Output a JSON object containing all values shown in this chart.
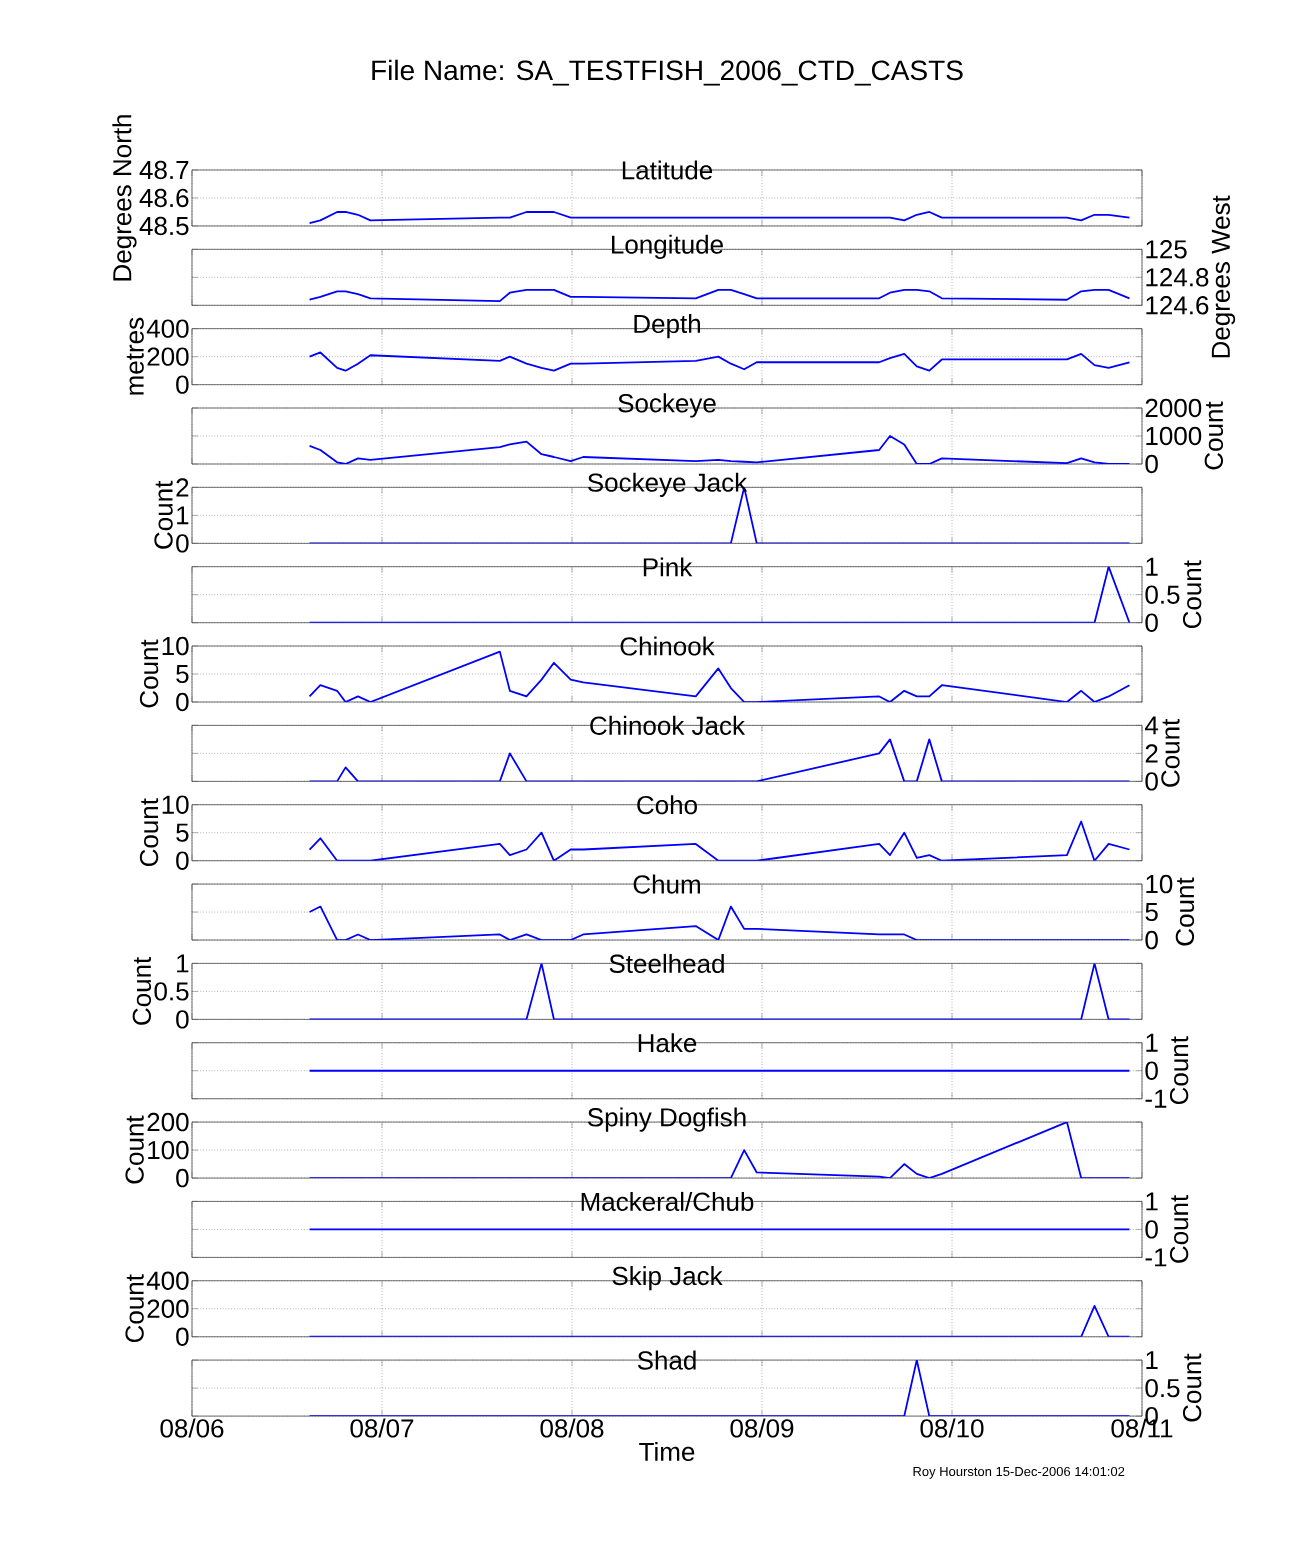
{
  "chart_data": [
    {
      "type": "line",
      "title": "Latitude",
      "ylabel": "Degrees North",
      "annotations": [
        "File Name: SA_TESTFISH_2006_CTD_CASTS"
      ],
      "x": [
        "2006-08-06T14:51",
        "2006-08-06T16:13",
        "2006-08-06T18:20",
        "2006-08-06T19:24",
        "2006-08-06T20:58",
        "2006-08-06T22:32",
        "2006-08-07T14:53",
        "2006-08-07T16:09",
        "2006-08-07T18:15",
        "2006-08-07T20:09",
        "2006-08-07T21:43",
        "2006-08-07T23:50",
        "2006-08-08T01:25",
        "2006-08-08T15:38",
        "2006-08-08T18:29",
        "2006-08-08T20:04",
        "2006-08-08T21:45",
        "2006-08-08T23:20",
        "2006-08-09T14:48",
        "2006-08-09T16:10",
        "2006-08-09T17:58",
        "2006-08-09T19:33",
        "2006-08-09T21:08",
        "2006-08-09T22:43",
        "2006-08-10T14:31",
        "2006-08-10T16:19",
        "2006-08-10T18:00",
        "2006-08-10T19:47",
        "2006-08-10T22:25"
      ],
      "xlim": [
        "2006-08-06",
        "2006-08-11"
      ],
      "xticks": [
        {
          "value": "2006-08-06",
          "label": null
        },
        {
          "value": "2006-08-07",
          "label": null
        },
        {
          "value": "2006-08-08",
          "label": null
        },
        {
          "value": "2006-08-09",
          "label": null
        },
        {
          "value": "2006-08-10",
          "label": null
        },
        {
          "value": "2006-08-11",
          "label": null
        }
      ],
      "ylim": [
        48.5,
        48.7
      ],
      "yticks": [
        48.5,
        48.6,
        48.7
      ],
      "grid": true,
      "tick_labels": "y",
      "series": [
        {
          "color": "#0000ff",
          "values": [
            48.51,
            48.52,
            48.55,
            48.55,
            48.54,
            48.52,
            48.53,
            48.53,
            48.55,
            48.55,
            48.55,
            48.53,
            48.53,
            48.53,
            48.53,
            48.53,
            48.53,
            48.53,
            48.53,
            48.53,
            48.52,
            48.54,
            48.55,
            48.53,
            48.53,
            48.52,
            48.54,
            48.54,
            48.53
          ]
        }
      ]
    },
    {
      "type": "line",
      "title": "Longitude",
      "ylabel": "Degrees West",
      "x": [
        "2006-08-06T14:51",
        "2006-08-06T16:13",
        "2006-08-06T18:20",
        "2006-08-06T19:24",
        "2006-08-06T20:58",
        "2006-08-06T22:32",
        "2006-08-07T14:53",
        "2006-08-07T16:09",
        "2006-08-07T18:15",
        "2006-08-07T20:09",
        "2006-08-07T21:43",
        "2006-08-07T23:50",
        "2006-08-08T01:25",
        "2006-08-08T15:38",
        "2006-08-08T18:29",
        "2006-08-08T20:04",
        "2006-08-08T21:45",
        "2006-08-08T23:20",
        "2006-08-09T14:48",
        "2006-08-09T16:10",
        "2006-08-09T17:58",
        "2006-08-09T19:33",
        "2006-08-09T21:08",
        "2006-08-09T22:43",
        "2006-08-10T14:31",
        "2006-08-10T16:19",
        "2006-08-10T18:00",
        "2006-08-10T19:47",
        "2006-08-10T22:25"
      ],
      "xlim": [
        "2006-08-06",
        "2006-08-11"
      ],
      "xticks": [
        {
          "value": "2006-08-06",
          "label": null
        },
        {
          "value": "2006-08-07",
          "label": null
        },
        {
          "value": "2006-08-08",
          "label": null
        },
        {
          "value": "2006-08-09",
          "label": null
        },
        {
          "value": "2006-08-10",
          "label": null
        },
        {
          "value": "2006-08-11",
          "label": null
        }
      ],
      "ylim": [
        124.6,
        125
      ],
      "yticks": [
        124.6,
        124.8,
        125
      ],
      "grid": true,
      "tick_labels": "y",
      "series": [
        {
          "color": "#0000ff",
          "values": [
            124.64,
            124.66,
            124.7,
            124.7,
            124.68,
            124.65,
            124.63,
            124.69,
            124.71,
            124.71,
            124.71,
            124.66,
            124.66,
            124.65,
            124.71,
            124.71,
            124.68,
            124.65,
            124.65,
            124.69,
            124.71,
            124.71,
            124.7,
            124.65,
            124.64,
            124.7,
            124.71,
            124.71,
            124.65
          ]
        }
      ]
    },
    {
      "type": "line",
      "title": "Depth",
      "ylabel": "metres",
      "x": [
        "2006-08-06T14:51",
        "2006-08-06T16:13",
        "2006-08-06T18:20",
        "2006-08-06T19:24",
        "2006-08-06T20:58",
        "2006-08-06T22:32",
        "2006-08-07T14:53",
        "2006-08-07T16:09",
        "2006-08-07T18:15",
        "2006-08-07T20:09",
        "2006-08-07T21:43",
        "2006-08-07T23:50",
        "2006-08-08T01:25",
        "2006-08-08T15:38",
        "2006-08-08T18:29",
        "2006-08-08T20:04",
        "2006-08-08T21:45",
        "2006-08-08T23:20",
        "2006-08-09T14:48",
        "2006-08-09T16:10",
        "2006-08-09T17:58",
        "2006-08-09T19:33",
        "2006-08-09T21:08",
        "2006-08-09T22:43",
        "2006-08-10T14:31",
        "2006-08-10T16:19",
        "2006-08-10T18:00",
        "2006-08-10T19:47",
        "2006-08-10T22:25"
      ],
      "xlim": [
        "2006-08-06",
        "2006-08-11"
      ],
      "xticks": [
        {
          "value": "2006-08-06",
          "label": null
        },
        {
          "value": "2006-08-07",
          "label": null
        },
        {
          "value": "2006-08-08",
          "label": null
        },
        {
          "value": "2006-08-09",
          "label": null
        },
        {
          "value": "2006-08-10",
          "label": null
        },
        {
          "value": "2006-08-11",
          "label": null
        }
      ],
      "ylim": [
        0,
        400
      ],
      "yticks": [
        0,
        200,
        400
      ],
      "grid": true,
      "tick_labels": "y",
      "series": [
        {
          "color": "#0000ff",
          "values": [
            200,
            230,
            120,
            100,
            150,
            210,
            170,
            200,
            150,
            120,
            100,
            150,
            150,
            170,
            200,
            150,
            110,
            160,
            160,
            190,
            220,
            130,
            100,
            180,
            180,
            220,
            140,
            120,
            160
          ]
        }
      ]
    },
    {
      "type": "line",
      "title": "Sockeye",
      "ylabel": "Count",
      "x": [
        "2006-08-06T14:51",
        "2006-08-06T16:13",
        "2006-08-06T18:20",
        "2006-08-06T19:24",
        "2006-08-06T20:58",
        "2006-08-06T22:32",
        "2006-08-07T14:53",
        "2006-08-07T16:09",
        "2006-08-07T18:15",
        "2006-08-07T20:09",
        "2006-08-07T21:43",
        "2006-08-07T23:50",
        "2006-08-08T01:25",
        "2006-08-08T15:38",
        "2006-08-08T18:29",
        "2006-08-08T20:04",
        "2006-08-08T21:45",
        "2006-08-08T23:20",
        "2006-08-09T14:48",
        "2006-08-09T16:10",
        "2006-08-09T17:58",
        "2006-08-09T19:33",
        "2006-08-09T21:08",
        "2006-08-09T22:43",
        "2006-08-10T14:31",
        "2006-08-10T16:19",
        "2006-08-10T18:00",
        "2006-08-10T19:47",
        "2006-08-10T22:25"
      ],
      "xlim": [
        "2006-08-06",
        "2006-08-11"
      ],
      "xticks": [
        {
          "value": "2006-08-06",
          "label": null
        },
        {
          "value": "2006-08-07",
          "label": null
        },
        {
          "value": "2006-08-08",
          "label": null
        },
        {
          "value": "2006-08-09",
          "label": null
        },
        {
          "value": "2006-08-10",
          "label": null
        },
        {
          "value": "2006-08-11",
          "label": null
        }
      ],
      "ylim": [
        0,
        2000
      ],
      "yticks": [
        0,
        1000,
        2000
      ],
      "grid": true,
      "tick_labels": "y",
      "series": [
        {
          "color": "#0000ff",
          "values": [
            650,
            500,
            60,
            0,
            200,
            150,
            600,
            700,
            800,
            350,
            250,
            100,
            250,
            100,
            150,
            100,
            80,
            60,
            500,
            1000,
            700,
            0,
            0,
            200,
            30,
            200,
            60,
            0,
            0
          ]
        }
      ]
    },
    {
      "type": "line",
      "title": "Sockeye Jack",
      "ylabel": "Count",
      "x": [
        "2006-08-06T14:51",
        "2006-08-06T16:13",
        "2006-08-06T18:20",
        "2006-08-06T19:24",
        "2006-08-06T20:58",
        "2006-08-06T22:32",
        "2006-08-07T14:53",
        "2006-08-07T16:09",
        "2006-08-07T18:15",
        "2006-08-07T20:09",
        "2006-08-07T21:43",
        "2006-08-07T23:50",
        "2006-08-08T01:25",
        "2006-08-08T15:38",
        "2006-08-08T18:29",
        "2006-08-08T20:04",
        "2006-08-08T21:45",
        "2006-08-08T23:20",
        "2006-08-09T14:48",
        "2006-08-09T16:10",
        "2006-08-09T17:58",
        "2006-08-09T19:33",
        "2006-08-09T21:08",
        "2006-08-09T22:43",
        "2006-08-10T14:31",
        "2006-08-10T16:19",
        "2006-08-10T18:00",
        "2006-08-10T19:47",
        "2006-08-10T22:25"
      ],
      "xlim": [
        "2006-08-06",
        "2006-08-11"
      ],
      "xticks": [
        {
          "value": "2006-08-06",
          "label": null
        },
        {
          "value": "2006-08-07",
          "label": null
        },
        {
          "value": "2006-08-08",
          "label": null
        },
        {
          "value": "2006-08-09",
          "label": null
        },
        {
          "value": "2006-08-10",
          "label": null
        },
        {
          "value": "2006-08-11",
          "label": null
        }
      ],
      "ylim": [
        0,
        2
      ],
      "yticks": [
        0,
        1,
        2
      ],
      "grid": true,
      "tick_labels": "y",
      "series": [
        {
          "color": "#0000ff",
          "values": [
            0,
            0,
            0,
            0,
            0,
            0,
            0,
            0,
            0,
            0,
            0,
            0,
            0,
            0,
            0,
            0,
            2,
            0,
            0,
            0,
            0,
            0,
            0,
            0,
            0,
            0,
            0,
            0,
            0
          ]
        }
      ]
    },
    {
      "type": "line",
      "title": "Pink",
      "ylabel": "Count",
      "x": [
        "2006-08-06T14:51",
        "2006-08-06T16:13",
        "2006-08-06T18:20",
        "2006-08-06T19:24",
        "2006-08-06T20:58",
        "2006-08-06T22:32",
        "2006-08-07T14:53",
        "2006-08-07T16:09",
        "2006-08-07T18:15",
        "2006-08-07T20:09",
        "2006-08-07T21:43",
        "2006-08-07T23:50",
        "2006-08-08T01:25",
        "2006-08-08T15:38",
        "2006-08-08T18:29",
        "2006-08-08T20:04",
        "2006-08-08T21:45",
        "2006-08-08T23:20",
        "2006-08-09T14:48",
        "2006-08-09T16:10",
        "2006-08-09T17:58",
        "2006-08-09T19:33",
        "2006-08-09T21:08",
        "2006-08-09T22:43",
        "2006-08-10T14:31",
        "2006-08-10T16:19",
        "2006-08-10T18:00",
        "2006-08-10T19:47",
        "2006-08-10T22:25"
      ],
      "xlim": [
        "2006-08-06",
        "2006-08-11"
      ],
      "xticks": [
        {
          "value": "2006-08-06",
          "label": null
        },
        {
          "value": "2006-08-07",
          "label": null
        },
        {
          "value": "2006-08-08",
          "label": null
        },
        {
          "value": "2006-08-09",
          "label": null
        },
        {
          "value": "2006-08-10",
          "label": null
        },
        {
          "value": "2006-08-11",
          "label": null
        }
      ],
      "ylim": [
        0,
        1
      ],
      "yticks": [
        0,
        0.5,
        1
      ],
      "grid": true,
      "tick_labels": "y",
      "series": [
        {
          "color": "#0000ff",
          "values": [
            0,
            0,
            0,
            0,
            0,
            0,
            0,
            0,
            0,
            0,
            0,
            0,
            0,
            0,
            0,
            0,
            0,
            0,
            0,
            0,
            0,
            0,
            0,
            0,
            0,
            0,
            0,
            1,
            0
          ]
        }
      ]
    },
    {
      "type": "line",
      "title": "Chinook",
      "ylabel": "Count",
      "x": [
        "2006-08-06T14:51",
        "2006-08-06T16:13",
        "2006-08-06T18:20",
        "2006-08-06T19:24",
        "2006-08-06T20:58",
        "2006-08-06T22:32",
        "2006-08-07T14:53",
        "2006-08-07T16:09",
        "2006-08-07T18:15",
        "2006-08-07T20:09",
        "2006-08-07T21:43",
        "2006-08-07T23:50",
        "2006-08-08T01:25",
        "2006-08-08T15:38",
        "2006-08-08T18:29",
        "2006-08-08T20:04",
        "2006-08-08T21:45",
        "2006-08-08T23:20",
        "2006-08-09T14:48",
        "2006-08-09T16:10",
        "2006-08-09T17:58",
        "2006-08-09T19:33",
        "2006-08-09T21:08",
        "2006-08-09T22:43",
        "2006-08-10T14:31",
        "2006-08-10T16:19",
        "2006-08-10T18:00",
        "2006-08-10T19:47",
        "2006-08-10T22:25"
      ],
      "xlim": [
        "2006-08-06",
        "2006-08-11"
      ],
      "xticks": [
        {
          "value": "2006-08-06",
          "label": null
        },
        {
          "value": "2006-08-07",
          "label": null
        },
        {
          "value": "2006-08-08",
          "label": null
        },
        {
          "value": "2006-08-09",
          "label": null
        },
        {
          "value": "2006-08-10",
          "label": null
        },
        {
          "value": "2006-08-11",
          "label": null
        }
      ],
      "ylim": [
        0,
        10
      ],
      "yticks": [
        0,
        5,
        10
      ],
      "grid": true,
      "tick_labels": "y",
      "series": [
        {
          "color": "#0000ff",
          "values": [
            1,
            3,
            2,
            0,
            1,
            0,
            9,
            2,
            1,
            4,
            7,
            4,
            3.5,
            1,
            6,
            2.5,
            0,
            0,
            1,
            0,
            2,
            1,
            1,
            3,
            0,
            2,
            0,
            1,
            3
          ]
        }
      ]
    },
    {
      "type": "line",
      "title": "Chinook Jack",
      "ylabel": "Count",
      "x": [
        "2006-08-06T14:51",
        "2006-08-06T16:13",
        "2006-08-06T18:20",
        "2006-08-06T19:24",
        "2006-08-06T20:58",
        "2006-08-06T22:32",
        "2006-08-07T14:53",
        "2006-08-07T16:09",
        "2006-08-07T18:15",
        "2006-08-07T20:09",
        "2006-08-07T21:43",
        "2006-08-07T23:50",
        "2006-08-08T01:25",
        "2006-08-08T15:38",
        "2006-08-08T18:29",
        "2006-08-08T20:04",
        "2006-08-08T21:45",
        "2006-08-08T23:20",
        "2006-08-09T14:48",
        "2006-08-09T16:10",
        "2006-08-09T17:58",
        "2006-08-09T19:33",
        "2006-08-09T21:08",
        "2006-08-09T22:43",
        "2006-08-10T14:31",
        "2006-08-10T16:19",
        "2006-08-10T18:00",
        "2006-08-10T19:47",
        "2006-08-10T22:25"
      ],
      "xlim": [
        "2006-08-06",
        "2006-08-11"
      ],
      "xticks": [
        {
          "value": "2006-08-06",
          "label": null
        },
        {
          "value": "2006-08-07",
          "label": null
        },
        {
          "value": "2006-08-08",
          "label": null
        },
        {
          "value": "2006-08-09",
          "label": null
        },
        {
          "value": "2006-08-10",
          "label": null
        },
        {
          "value": "2006-08-11",
          "label": null
        }
      ],
      "ylim": [
        0,
        4
      ],
      "yticks": [
        0,
        2,
        4
      ],
      "grid": true,
      "tick_labels": "y",
      "series": [
        {
          "color": "#0000ff",
          "values": [
            0,
            0,
            0,
            1,
            0,
            0,
            0,
            2,
            0,
            0,
            0,
            0,
            0,
            0,
            0,
            0,
            0,
            0,
            2,
            3,
            0,
            0,
            3,
            0,
            0,
            0,
            0,
            0,
            0
          ]
        }
      ]
    },
    {
      "type": "line",
      "title": "Coho",
      "ylabel": "Count",
      "x": [
        "2006-08-06T14:51",
        "2006-08-06T16:13",
        "2006-08-06T18:20",
        "2006-08-06T19:24",
        "2006-08-06T20:58",
        "2006-08-06T22:32",
        "2006-08-07T14:53",
        "2006-08-07T16:09",
        "2006-08-07T18:15",
        "2006-08-07T20:09",
        "2006-08-07T21:43",
        "2006-08-07T23:50",
        "2006-08-08T01:25",
        "2006-08-08T15:38",
        "2006-08-08T18:29",
        "2006-08-08T20:04",
        "2006-08-08T21:45",
        "2006-08-08T23:20",
        "2006-08-09T14:48",
        "2006-08-09T16:10",
        "2006-08-09T17:58",
        "2006-08-09T19:33",
        "2006-08-09T21:08",
        "2006-08-09T22:43",
        "2006-08-10T14:31",
        "2006-08-10T16:19",
        "2006-08-10T18:00",
        "2006-08-10T19:47",
        "2006-08-10T22:25"
      ],
      "xlim": [
        "2006-08-06",
        "2006-08-11"
      ],
      "xticks": [
        {
          "value": "2006-08-06",
          "label": null
        },
        {
          "value": "2006-08-07",
          "label": null
        },
        {
          "value": "2006-08-08",
          "label": null
        },
        {
          "value": "2006-08-09",
          "label": null
        },
        {
          "value": "2006-08-10",
          "label": null
        },
        {
          "value": "2006-08-11",
          "label": null
        }
      ],
      "ylim": [
        0,
        10
      ],
      "yticks": [
        0,
        5,
        10
      ],
      "grid": true,
      "tick_labels": "y",
      "series": [
        {
          "color": "#0000ff",
          "values": [
            2,
            4,
            0,
            0,
            0,
            0,
            3,
            1,
            2,
            5,
            0,
            2,
            2,
            3,
            0,
            0,
            0,
            0,
            3,
            1,
            5,
            0.5,
            1,
            0,
            1,
            7,
            0,
            3,
            2
          ]
        }
      ]
    },
    {
      "type": "line",
      "title": "Chum",
      "ylabel": "Count",
      "x": [
        "2006-08-06T14:51",
        "2006-08-06T16:13",
        "2006-08-06T18:20",
        "2006-08-06T19:24",
        "2006-08-06T20:58",
        "2006-08-06T22:32",
        "2006-08-07T14:53",
        "2006-08-07T16:09",
        "2006-08-07T18:15",
        "2006-08-07T20:09",
        "2006-08-07T21:43",
        "2006-08-07T23:50",
        "2006-08-08T01:25",
        "2006-08-08T15:38",
        "2006-08-08T18:29",
        "2006-08-08T20:04",
        "2006-08-08T21:45",
        "2006-08-08T23:20",
        "2006-08-09T14:48",
        "2006-08-09T16:10",
        "2006-08-09T17:58",
        "2006-08-09T19:33",
        "2006-08-09T21:08",
        "2006-08-09T22:43",
        "2006-08-10T14:31",
        "2006-08-10T16:19",
        "2006-08-10T18:00",
        "2006-08-10T19:47",
        "2006-08-10T22:25"
      ],
      "xlim": [
        "2006-08-06",
        "2006-08-11"
      ],
      "xticks": [
        {
          "value": "2006-08-06",
          "label": null
        },
        {
          "value": "2006-08-07",
          "label": null
        },
        {
          "value": "2006-08-08",
          "label": null
        },
        {
          "value": "2006-08-09",
          "label": null
        },
        {
          "value": "2006-08-10",
          "label": null
        },
        {
          "value": "2006-08-11",
          "label": null
        }
      ],
      "ylim": [
        0,
        10
      ],
      "yticks": [
        0,
        5,
        10
      ],
      "grid": true,
      "tick_labels": "y",
      "series": [
        {
          "color": "#0000ff",
          "values": [
            5,
            6,
            0,
            0,
            1,
            0,
            1,
            0,
            1,
            0,
            0,
            0,
            1,
            2.5,
            0,
            6,
            2,
            2,
            1,
            1,
            1,
            0,
            0,
            0,
            0,
            0,
            0,
            0,
            0
          ]
        }
      ]
    },
    {
      "type": "line",
      "title": "Steelhead",
      "ylabel": "Count",
      "x": [
        "2006-08-06T14:51",
        "2006-08-06T16:13",
        "2006-08-06T18:20",
        "2006-08-06T19:24",
        "2006-08-06T20:58",
        "2006-08-06T22:32",
        "2006-08-07T14:53",
        "2006-08-07T16:09",
        "2006-08-07T18:15",
        "2006-08-07T20:09",
        "2006-08-07T21:43",
        "2006-08-07T23:50",
        "2006-08-08T01:25",
        "2006-08-08T15:38",
        "2006-08-08T18:29",
        "2006-08-08T20:04",
        "2006-08-08T21:45",
        "2006-08-08T23:20",
        "2006-08-09T14:48",
        "2006-08-09T16:10",
        "2006-08-09T17:58",
        "2006-08-09T19:33",
        "2006-08-09T21:08",
        "2006-08-09T22:43",
        "2006-08-10T14:31",
        "2006-08-10T16:19",
        "2006-08-10T18:00",
        "2006-08-10T19:47",
        "2006-08-10T22:25"
      ],
      "xlim": [
        "2006-08-06",
        "2006-08-11"
      ],
      "xticks": [
        {
          "value": "2006-08-06",
          "label": null
        },
        {
          "value": "2006-08-07",
          "label": null
        },
        {
          "value": "2006-08-08",
          "label": null
        },
        {
          "value": "2006-08-09",
          "label": null
        },
        {
          "value": "2006-08-10",
          "label": null
        },
        {
          "value": "2006-08-11",
          "label": null
        }
      ],
      "ylim": [
        0,
        1
      ],
      "yticks": [
        0,
        0.5,
        1
      ],
      "grid": true,
      "tick_labels": "y",
      "series": [
        {
          "color": "#0000ff",
          "values": [
            0,
            0,
            0,
            0,
            0,
            0,
            0,
            0,
            0,
            1,
            0,
            0,
            0,
            0,
            0,
            0,
            0,
            0,
            0,
            0,
            0,
            0,
            0,
            0,
            0,
            0,
            1,
            0,
            0
          ]
        }
      ]
    },
    {
      "type": "line",
      "title": "Hake",
      "ylabel": "Count",
      "x": [
        "2006-08-06T14:51",
        "2006-08-06T16:13",
        "2006-08-06T18:20",
        "2006-08-06T19:24",
        "2006-08-06T20:58",
        "2006-08-06T22:32",
        "2006-08-07T14:53",
        "2006-08-07T16:09",
        "2006-08-07T18:15",
        "2006-08-07T20:09",
        "2006-08-07T21:43",
        "2006-08-07T23:50",
        "2006-08-08T01:25",
        "2006-08-08T15:38",
        "2006-08-08T18:29",
        "2006-08-08T20:04",
        "2006-08-08T21:45",
        "2006-08-08T23:20",
        "2006-08-09T14:48",
        "2006-08-09T16:10",
        "2006-08-09T17:58",
        "2006-08-09T19:33",
        "2006-08-09T21:08",
        "2006-08-09T22:43",
        "2006-08-10T14:31",
        "2006-08-10T16:19",
        "2006-08-10T18:00",
        "2006-08-10T19:47",
        "2006-08-10T22:25"
      ],
      "xlim": [
        "2006-08-06",
        "2006-08-11"
      ],
      "xticks": [
        {
          "value": "2006-08-06",
          "label": null
        },
        {
          "value": "2006-08-07",
          "label": null
        },
        {
          "value": "2006-08-08",
          "label": null
        },
        {
          "value": "2006-08-09",
          "label": null
        },
        {
          "value": "2006-08-10",
          "label": null
        },
        {
          "value": "2006-08-11",
          "label": null
        }
      ],
      "ylim": [
        -1,
        1
      ],
      "yticks": [
        -1,
        0,
        1
      ],
      "grid": true,
      "tick_labels": "y",
      "series": [
        {
          "color": "#0000ff",
          "values": [
            0,
            0,
            0,
            0,
            0,
            0,
            0,
            0,
            0,
            0,
            0,
            0,
            0,
            0,
            0,
            0,
            0,
            0,
            0,
            0,
            0,
            0,
            0,
            0,
            0,
            0,
            0,
            0,
            0
          ]
        }
      ]
    },
    {
      "type": "line",
      "title": "Spiny Dogfish",
      "ylabel": "Count",
      "x": [
        "2006-08-06T14:51",
        "2006-08-06T16:13",
        "2006-08-06T18:20",
        "2006-08-06T19:24",
        "2006-08-06T20:58",
        "2006-08-06T22:32",
        "2006-08-07T14:53",
        "2006-08-07T16:09",
        "2006-08-07T18:15",
        "2006-08-07T20:09",
        "2006-08-07T21:43",
        "2006-08-07T23:50",
        "2006-08-08T01:25",
        "2006-08-08T15:38",
        "2006-08-08T18:29",
        "2006-08-08T20:04",
        "2006-08-08T21:45",
        "2006-08-08T23:20",
        "2006-08-09T14:48",
        "2006-08-09T16:10",
        "2006-08-09T17:58",
        "2006-08-09T19:33",
        "2006-08-09T21:08",
        "2006-08-09T22:43",
        "2006-08-10T14:31",
        "2006-08-10T16:19",
        "2006-08-10T18:00",
        "2006-08-10T19:47",
        "2006-08-10T22:25"
      ],
      "xlim": [
        "2006-08-06",
        "2006-08-11"
      ],
      "xticks": [
        {
          "value": "2006-08-06",
          "label": null
        },
        {
          "value": "2006-08-07",
          "label": null
        },
        {
          "value": "2006-08-08",
          "label": null
        },
        {
          "value": "2006-08-09",
          "label": null
        },
        {
          "value": "2006-08-10",
          "label": null
        },
        {
          "value": "2006-08-11",
          "label": null
        }
      ],
      "ylim": [
        0,
        200
      ],
      "yticks": [
        0,
        100,
        200
      ],
      "grid": true,
      "tick_labels": "y",
      "series": [
        {
          "color": "#0000ff",
          "values": [
            0,
            0,
            0,
            0,
            0,
            0,
            0,
            0,
            0,
            0,
            0,
            0,
            0,
            0,
            0,
            0,
            100,
            20,
            5,
            0,
            50,
            15,
            0,
            15,
            200,
            0,
            0,
            0,
            0
          ]
        }
      ]
    },
    {
      "type": "line",
      "title": "Mackeral/Chub",
      "ylabel": "Count",
      "x": [
        "2006-08-06T14:51",
        "2006-08-06T16:13",
        "2006-08-06T18:20",
        "2006-08-06T19:24",
        "2006-08-06T20:58",
        "2006-08-06T22:32",
        "2006-08-07T14:53",
        "2006-08-07T16:09",
        "2006-08-07T18:15",
        "2006-08-07T20:09",
        "2006-08-07T21:43",
        "2006-08-07T23:50",
        "2006-08-08T01:25",
        "2006-08-08T15:38",
        "2006-08-08T18:29",
        "2006-08-08T20:04",
        "2006-08-08T21:45",
        "2006-08-08T23:20",
        "2006-08-09T14:48",
        "2006-08-09T16:10",
        "2006-08-09T17:58",
        "2006-08-09T19:33",
        "2006-08-09T21:08",
        "2006-08-09T22:43",
        "2006-08-10T14:31",
        "2006-08-10T16:19",
        "2006-08-10T18:00",
        "2006-08-10T19:47",
        "2006-08-10T22:25"
      ],
      "xlim": [
        "2006-08-06",
        "2006-08-11"
      ],
      "xticks": [
        {
          "value": "2006-08-06",
          "label": null
        },
        {
          "value": "2006-08-07",
          "label": null
        },
        {
          "value": "2006-08-08",
          "label": null
        },
        {
          "value": "2006-08-09",
          "label": null
        },
        {
          "value": "2006-08-10",
          "label": null
        },
        {
          "value": "2006-08-11",
          "label": null
        }
      ],
      "ylim": [
        -1,
        1
      ],
      "yticks": [
        -1,
        0,
        1
      ],
      "grid": true,
      "tick_labels": "y",
      "series": [
        {
          "color": "#0000ff",
          "values": [
            0,
            0,
            0,
            0,
            0,
            0,
            0,
            0,
            0,
            0,
            0,
            0,
            0,
            0,
            0,
            0,
            0,
            0,
            0,
            0,
            0,
            0,
            0,
            0,
            0,
            0,
            0,
            0,
            0
          ]
        }
      ]
    },
    {
      "type": "line",
      "title": "Skip Jack",
      "ylabel": "Count",
      "x": [
        "2006-08-06T14:51",
        "2006-08-06T16:13",
        "2006-08-06T18:20",
        "2006-08-06T19:24",
        "2006-08-06T20:58",
        "2006-08-06T22:32",
        "2006-08-07T14:53",
        "2006-08-07T16:09",
        "2006-08-07T18:15",
        "2006-08-07T20:09",
        "2006-08-07T21:43",
        "2006-08-07T23:50",
        "2006-08-08T01:25",
        "2006-08-08T15:38",
        "2006-08-08T18:29",
        "2006-08-08T20:04",
        "2006-08-08T21:45",
        "2006-08-08T23:20",
        "2006-08-09T14:48",
        "2006-08-09T16:10",
        "2006-08-09T17:58",
        "2006-08-09T19:33",
        "2006-08-09T21:08",
        "2006-08-09T22:43",
        "2006-08-10T14:31",
        "2006-08-10T16:19",
        "2006-08-10T18:00",
        "2006-08-10T19:47",
        "2006-08-10T22:25"
      ],
      "xlim": [
        "2006-08-06",
        "2006-08-11"
      ],
      "xticks": [
        {
          "value": "2006-08-06",
          "label": null
        },
        {
          "value": "2006-08-07",
          "label": null
        },
        {
          "value": "2006-08-08",
          "label": null
        },
        {
          "value": "2006-08-09",
          "label": null
        },
        {
          "value": "2006-08-10",
          "label": null
        },
        {
          "value": "2006-08-11",
          "label": null
        }
      ],
      "ylim": [
        0,
        400
      ],
      "yticks": [
        0,
        200,
        400
      ],
      "grid": true,
      "tick_labels": "y",
      "series": [
        {
          "color": "#0000ff",
          "values": [
            0,
            0,
            0,
            0,
            0,
            0,
            0,
            0,
            0,
            0,
            0,
            0,
            0,
            0,
            0,
            0,
            0,
            0,
            0,
            0,
            0,
            0,
            0,
            0,
            0,
            0,
            220,
            0,
            0
          ]
        }
      ]
    },
    {
      "type": "line",
      "title": "Shad",
      "ylabel": "Count",
      "xlabel": "Time",
      "annotations": [
        "Roy Hourston 15-Dec-2006 14:01:02"
      ],
      "x": [
        "2006-08-06T14:51",
        "2006-08-06T16:13",
        "2006-08-06T18:20",
        "2006-08-06T19:24",
        "2006-08-06T20:58",
        "2006-08-06T22:32",
        "2006-08-07T14:53",
        "2006-08-07T16:09",
        "2006-08-07T18:15",
        "2006-08-07T20:09",
        "2006-08-07T21:43",
        "2006-08-07T23:50",
        "2006-08-08T01:25",
        "2006-08-08T15:38",
        "2006-08-08T18:29",
        "2006-08-08T20:04",
        "2006-08-08T21:45",
        "2006-08-08T23:20",
        "2006-08-09T14:48",
        "2006-08-09T16:10",
        "2006-08-09T17:58",
        "2006-08-09T19:33",
        "2006-08-09T21:08",
        "2006-08-09T22:43",
        "2006-08-10T14:31",
        "2006-08-10T16:19",
        "2006-08-10T18:00",
        "2006-08-10T19:47",
        "2006-08-10T22:25"
      ],
      "xlim": [
        "2006-08-06",
        "2006-08-11"
      ],
      "xticks": [
        {
          "value": "2006-08-06",
          "label": "08/06"
        },
        {
          "value": "2006-08-07",
          "label": "08/07"
        },
        {
          "value": "2006-08-08",
          "label": "08/08"
        },
        {
          "value": "2006-08-09",
          "label": "08/09"
        },
        {
          "value": "2006-08-10",
          "label": "08/10"
        },
        {
          "value": "2006-08-11",
          "label": "08/11"
        }
      ],
      "ylim": [
        0,
        1
      ],
      "yticks": [
        0,
        0.5,
        1
      ],
      "grid": true,
      "series": [
        {
          "color": "#0000ff",
          "values": [
            0,
            0,
            0,
            0,
            0,
            0,
            0,
            0,
            0,
            0,
            0,
            0,
            0,
            0,
            0,
            0,
            0,
            0,
            0,
            0,
            0,
            1,
            0,
            0,
            0,
            0,
            0,
            0,
            0
          ]
        }
      ]
    }
  ]
}
